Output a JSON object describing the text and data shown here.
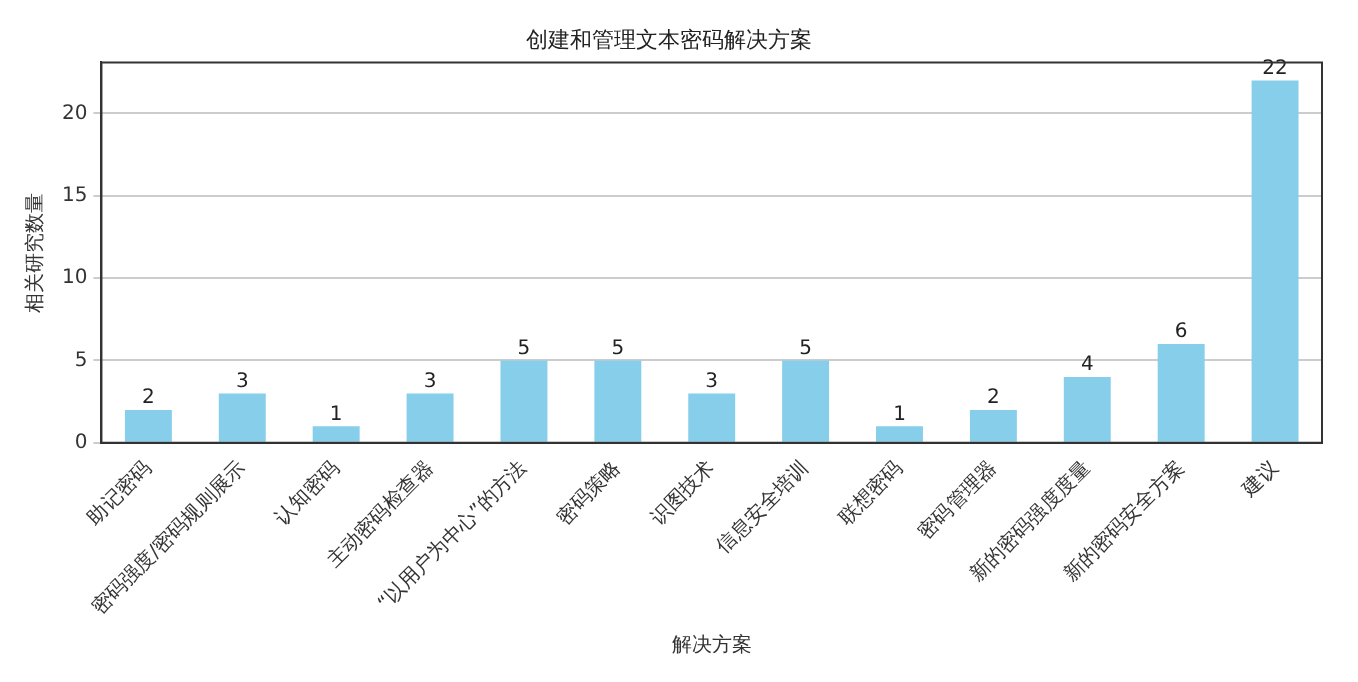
{
  "chart_data": {
    "type": "bar",
    "title": "创建和管理文本密码解决方案",
    "xlabel": "解决方案",
    "ylabel": "相关研究数量",
    "categories": [
      "助记密码",
      "密码强度/密码规则展示",
      "认知密码",
      "主动密码检查器",
      "“以用户为中心”的方法",
      "密码策略",
      "识图技术",
      "信息安全培训",
      "联想密码",
      "密码管理器",
      "新的密码强度度量",
      "新的密码安全方案",
      "建议"
    ],
    "values": [
      2,
      3,
      1,
      3,
      5,
      5,
      3,
      5,
      1,
      2,
      4,
      6,
      22
    ],
    "color": "#87ceeb",
    "ylim": [
      0,
      23.1
    ],
    "yticks": [
      0,
      5,
      10,
      15,
      20
    ],
    "grid": "y",
    "data_labels": true,
    "legend": false
  }
}
